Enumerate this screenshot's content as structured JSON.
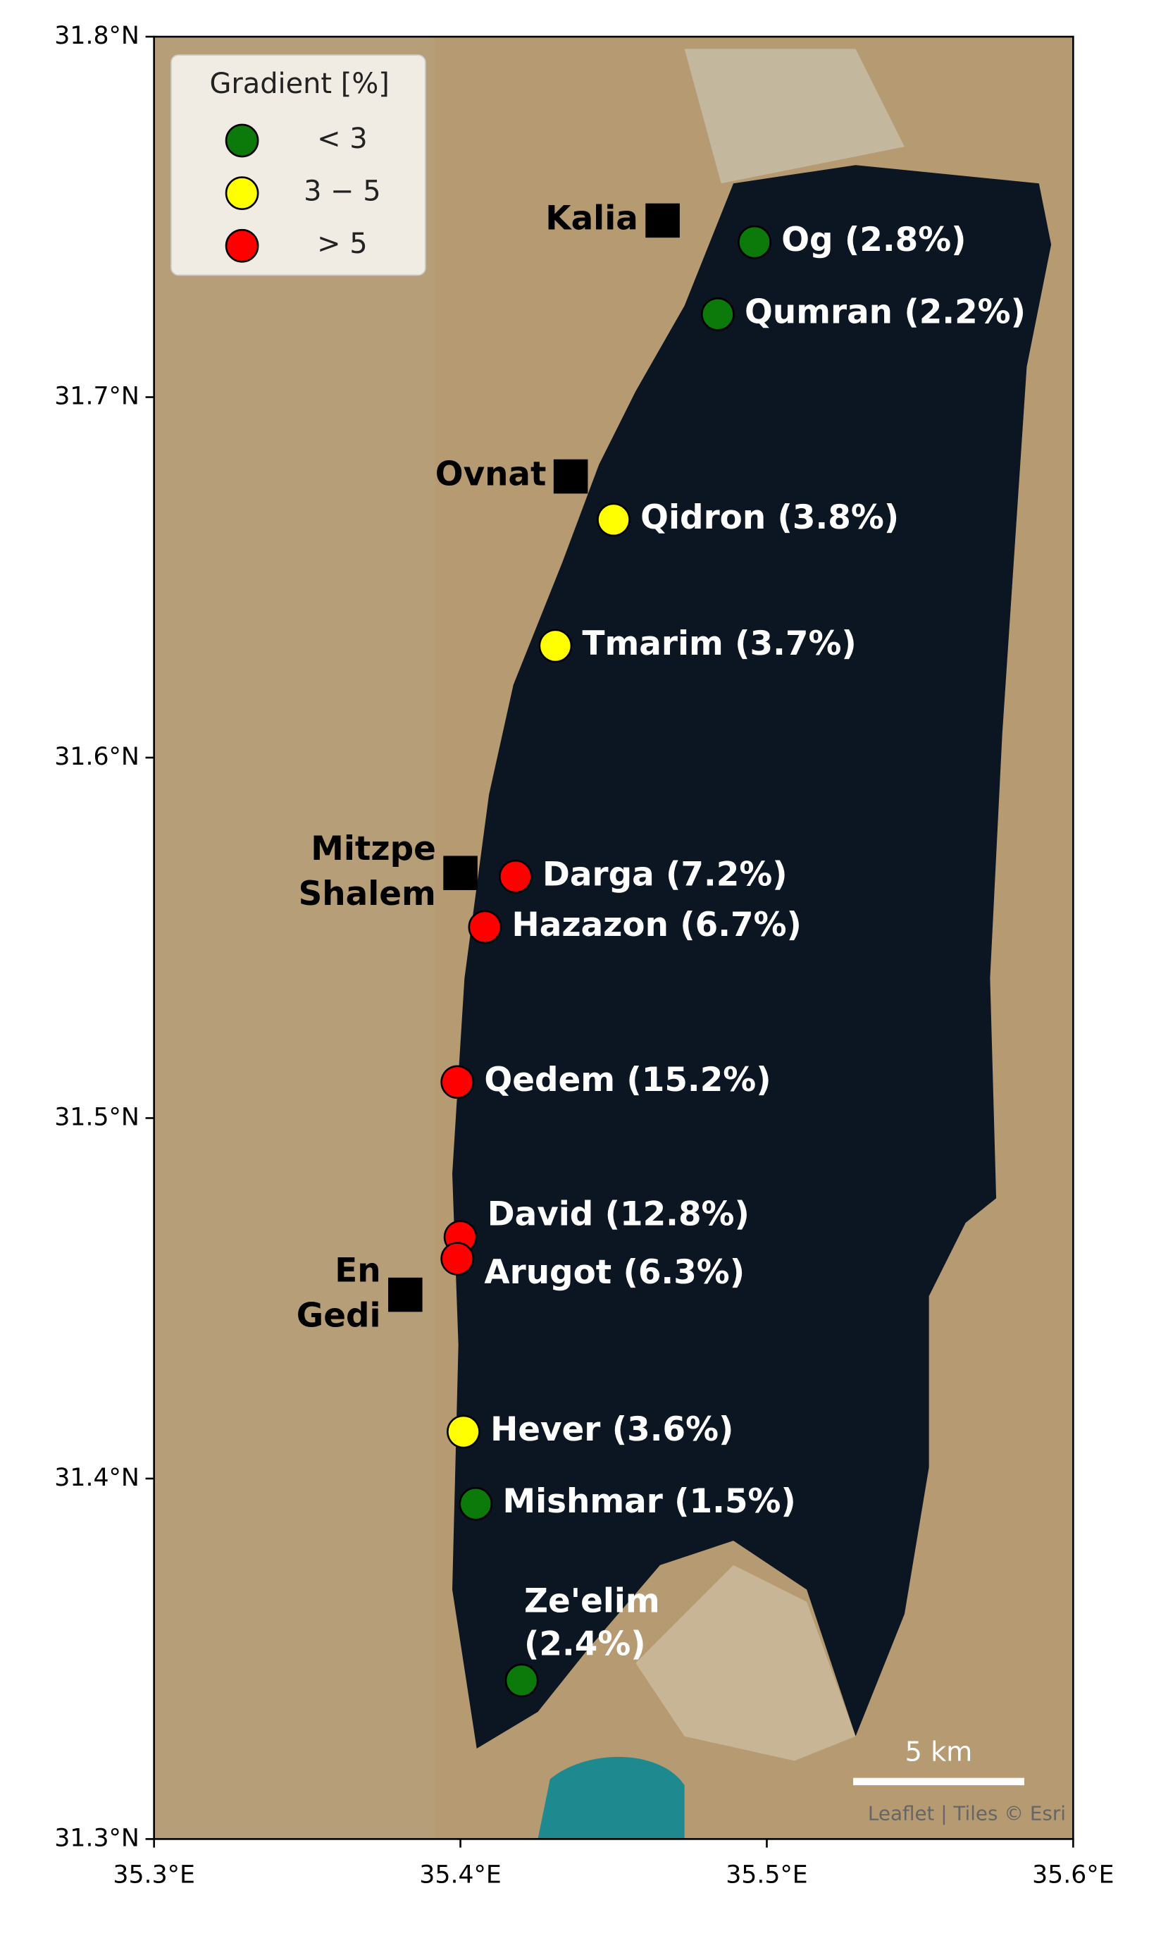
{
  "chart_data": {
    "type": "scatter",
    "xlim": [
      35.3,
      35.6
    ],
    "ylim": [
      31.3,
      31.8
    ],
    "xticks": [
      {
        "value": 35.3,
        "label": "35.3°E"
      },
      {
        "value": 35.4,
        "label": "35.4°E"
      },
      {
        "value": 35.5,
        "label": "35.5°E"
      },
      {
        "value": 35.6,
        "label": "35.6°E"
      }
    ],
    "yticks": [
      {
        "value": 31.3,
        "label": "31.3°N"
      },
      {
        "value": 31.4,
        "label": "31.4°N"
      },
      {
        "value": 31.5,
        "label": "31.5°N"
      },
      {
        "value": 31.6,
        "label": "31.6°N"
      },
      {
        "value": 31.7,
        "label": "31.7°N"
      },
      {
        "value": 31.8,
        "label": "31.8°N"
      }
    ],
    "legend": {
      "title": "Gradient [%]",
      "position": "upper left"
    },
    "series": [
      {
        "name": "< 3",
        "color": "#0b7a0b",
        "x": [
          35.496,
          35.484,
          35.405,
          35.42
        ],
        "y": [
          31.743,
          31.723,
          31.393,
          31.344
        ],
        "labels": [
          [
            "Og (2.8%)"
          ],
          [
            "Qumran (2.2%)"
          ],
          [
            "Mishmar (1.5%)"
          ],
          [
            "Ze'elim",
            "(2.4%)"
          ]
        ]
      },
      {
        "name": "3 − 5",
        "color": "#ffff00",
        "x": [
          35.45,
          35.431,
          35.401
        ],
        "y": [
          31.666,
          31.631,
          31.413
        ],
        "labels": [
          [
            "Qidron (3.8%)"
          ],
          [
            "Tmarim (3.7%)"
          ],
          [
            "Hever (3.6%)"
          ]
        ]
      },
      {
        "name": "> 5",
        "color": "#ff0000",
        "x": [
          35.418,
          35.408,
          35.399,
          35.4,
          35.399
        ],
        "y": [
          31.567,
          31.553,
          31.51,
          31.467,
          31.461
        ],
        "labels": [
          [
            "Darga (7.2%)"
          ],
          [
            "Hazazon (6.7%)"
          ],
          [
            "Qedem (15.2%)"
          ],
          [
            "David (12.8%)"
          ],
          [
            "Arugot (6.3%)"
          ]
        ]
      }
    ],
    "towns": {
      "color": "#000000",
      "x": [
        35.466,
        35.436,
        35.4,
        35.382
      ],
      "y": [
        31.749,
        31.678,
        31.568,
        31.451
      ],
      "labels": [
        [
          "Kalia"
        ],
        [
          "Ovnat"
        ],
        [
          "Mitzpe",
          "Shalem"
        ],
        [
          "En",
          "Gedi"
        ]
      ]
    },
    "scale_bar": "5 km",
    "attribution": "Leaflet | Tiles © Esri"
  }
}
